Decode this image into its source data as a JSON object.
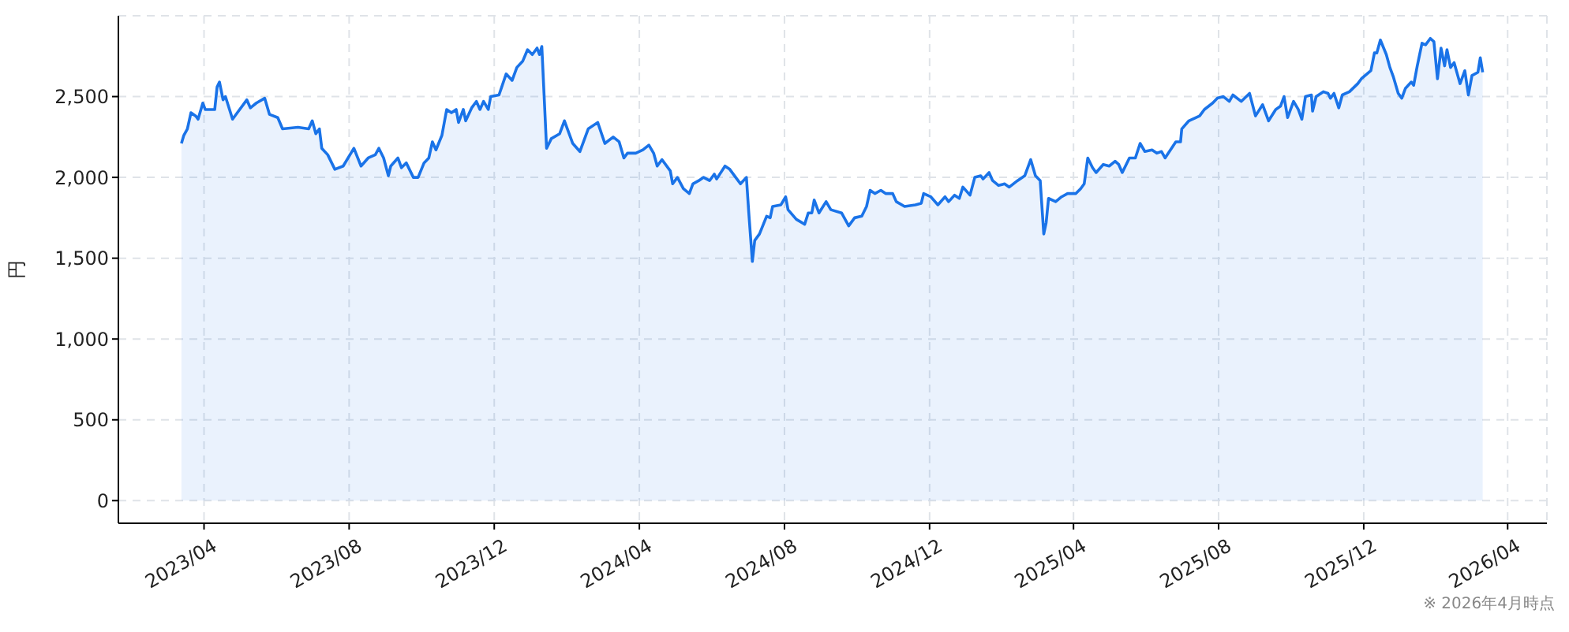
{
  "chart_data": {
    "type": "area",
    "ylabel": "円",
    "annotations": [
      "※ 2026年4月時点"
    ],
    "color": "#1a73e8",
    "grid": true,
    "xlim": [
      "2023-01-19",
      "2026-05-04"
    ],
    "xticks": [
      {
        "value": "2023-04",
        "label": "2023/04"
      },
      {
        "value": "2023-08",
        "label": "2023/08"
      },
      {
        "value": "2023-12",
        "label": "2023/12"
      },
      {
        "value": "2024-04",
        "label": "2024/04"
      },
      {
        "value": "2024-08",
        "label": "2024/08"
      },
      {
        "value": "2024-12",
        "label": "2024/12"
      },
      {
        "value": "2025-04",
        "label": "2025/04"
      },
      {
        "value": "2025-08",
        "label": "2025/08"
      },
      {
        "value": "2025-12",
        "label": "2025/12"
      },
      {
        "value": "2026-04",
        "label": "2026/04"
      }
    ],
    "ylim": [
      -140,
      3000
    ],
    "yticks": [
      0,
      500,
      {
        "value": 1000,
        "label": "1,000"
      },
      {
        "value": 1500,
        "label": "1,500"
      },
      {
        "value": 2000,
        "label": "2,000"
      },
      {
        "value": 2500,
        "label": "2,500"
      }
    ],
    "x": [
      "2023-03-13",
      "2023-03-15",
      "2023-03-18",
      "2023-03-21",
      "2023-03-25",
      "2023-03-27",
      "2023-03-31",
      "2023-04-02",
      "2023-04-10",
      "2023-04-12",
      "2023-04-14",
      "2023-04-17",
      "2023-04-19",
      "2023-04-25",
      "2023-04-29",
      "2023-05-07",
      "2023-05-10",
      "2023-05-15",
      "2023-05-22",
      "2023-05-26",
      "2023-06-02",
      "2023-06-06",
      "2023-06-19",
      "2023-06-28",
      "2023-07-01",
      "2023-07-04",
      "2023-07-07",
      "2023-07-09",
      "2023-07-14",
      "2023-07-20",
      "2023-07-27",
      "2023-08-05",
      "2023-08-11",
      "2023-08-17",
      "2023-08-23",
      "2023-08-26",
      "2023-08-30",
      "2023-09-03",
      "2023-09-05",
      "2023-09-11",
      "2023-09-14",
      "2023-09-18",
      "2023-09-24",
      "2023-09-28",
      "2023-10-03",
      "2023-10-07",
      "2023-10-10",
      "2023-10-13",
      "2023-10-18",
      "2023-10-22",
      "2023-10-26",
      "2023-10-30",
      "2023-11-01",
      "2023-11-05",
      "2023-11-07",
      "2023-11-12",
      "2023-11-16",
      "2023-11-19",
      "2023-11-22",
      "2023-11-26",
      "2023-11-28",
      "2023-12-05",
      "2023-12-11",
      "2023-12-16",
      "2023-12-20",
      "2023-12-25",
      "2023-12-29",
      "2024-01-02",
      "2024-01-06",
      "2024-01-08",
      "2024-01-10",
      "2024-01-14",
      "2024-01-18",
      "2024-01-25",
      "2024-01-29",
      "2024-02-05",
      "2024-02-11",
      "2024-02-18",
      "2024-02-26",
      "2024-03-03",
      "2024-03-10",
      "2024-03-15",
      "2024-03-19",
      "2024-03-22",
      "2024-03-29",
      "2024-04-04",
      "2024-04-09",
      "2024-04-13",
      "2024-04-16",
      "2024-04-20",
      "2024-04-27",
      "2024-04-29",
      "2024-05-03",
      "2024-05-08",
      "2024-05-13",
      "2024-05-16",
      "2024-05-21",
      "2024-05-25",
      "2024-05-30",
      "2024-06-03",
      "2024-06-05",
      "2024-06-12",
      "2024-06-16",
      "2024-06-22",
      "2024-06-25",
      "2024-06-30",
      "2024-07-02",
      "2024-07-05",
      "2024-07-07",
      "2024-07-11",
      "2024-07-17",
      "2024-07-20",
      "2024-07-22",
      "2024-07-29",
      "2024-08-02",
      "2024-08-04",
      "2024-08-11",
      "2024-08-18",
      "2024-08-21",
      "2024-08-24",
      "2024-08-26",
      "2024-08-30",
      "2024-09-05",
      "2024-09-09",
      "2024-09-18",
      "2024-09-24",
      "2024-09-29",
      "2024-10-05",
      "2024-10-09",
      "2024-10-12",
      "2024-10-16",
      "2024-10-21",
      "2024-10-25",
      "2024-10-31",
      "2024-11-03",
      "2024-11-10",
      "2024-11-19",
      "2024-11-24",
      "2024-11-26",
      "2024-12-02",
      "2024-12-08",
      "2024-12-14",
      "2024-12-17",
      "2024-12-22",
      "2024-12-26",
      "2024-12-29",
      "2025-01-04",
      "2025-01-08",
      "2025-01-13",
      "2025-01-15",
      "2025-01-20",
      "2025-01-23",
      "2025-01-28",
      "2025-02-02",
      "2025-02-06",
      "2025-02-13",
      "2025-02-19",
      "2025-02-24",
      "2025-02-28",
      "2025-03-04",
      "2025-03-07",
      "2025-03-09",
      "2025-03-11",
      "2025-03-17",
      "2025-03-22",
      "2025-03-27",
      "2025-04-03",
      "2025-04-07",
      "2025-04-10",
      "2025-04-13",
      "2025-04-17",
      "2025-04-20",
      "2025-04-26",
      "2025-05-01",
      "2025-05-06",
      "2025-05-09",
      "2025-05-12",
      "2025-05-18",
      "2025-05-23",
      "2025-05-27",
      "2025-05-31",
      "2025-06-06",
      "2025-06-10",
      "2025-06-14",
      "2025-06-17",
      "2025-06-26",
      "2025-06-30",
      "2025-07-01",
      "2025-07-07",
      "2025-07-16",
      "2025-07-20",
      "2025-07-27",
      "2025-07-31",
      "2025-08-05",
      "2025-08-10",
      "2025-08-13",
      "2025-08-20",
      "2025-08-27",
      "2025-09-01",
      "2025-09-07",
      "2025-09-12",
      "2025-09-18",
      "2025-09-22",
      "2025-09-25",
      "2025-09-28",
      "2025-10-03",
      "2025-10-07",
      "2025-10-10",
      "2025-10-13",
      "2025-10-18",
      "2025-10-19",
      "2025-10-22",
      "2025-10-28",
      "2025-11-01",
      "2025-11-03",
      "2025-11-06",
      "2025-11-10",
      "2025-11-13",
      "2025-11-19",
      "2025-11-26",
      "2025-11-29",
      "2025-12-07",
      "2025-12-10",
      "2025-12-12",
      "2025-12-15",
      "2025-12-20",
      "2025-12-23",
      "2025-12-26",
      "2025-12-30",
      "2026-01-02",
      "2026-01-05",
      "2026-01-10",
      "2026-01-12",
      "2026-01-15",
      "2026-01-19",
      "2026-01-22",
      "2026-01-26",
      "2026-01-29",
      "2026-02-01",
      "2026-02-04",
      "2026-02-07",
      "2026-02-09",
      "2026-02-12",
      "2026-02-15",
      "2026-02-20",
      "2026-02-24",
      "2026-02-27",
      "2026-03-02",
      "2026-03-07",
      "2026-03-09",
      "2026-03-11"
    ],
    "values": [
      2210,
      2260,
      2300,
      2400,
      2380,
      2360,
      2460,
      2420,
      2420,
      2560,
      2590,
      2480,
      2500,
      2360,
      2400,
      2480,
      2430,
      2460,
      2490,
      2390,
      2370,
      2300,
      2310,
      2300,
      2350,
      2270,
      2300,
      2180,
      2140,
      2050,
      2070,
      2180,
      2070,
      2120,
      2140,
      2180,
      2120,
      2010,
      2070,
      2120,
      2060,
      2090,
      2000,
      2000,
      2090,
      2120,
      2220,
      2170,
      2260,
      2420,
      2400,
      2420,
      2340,
      2420,
      2350,
      2430,
      2470,
      2420,
      2470,
      2420,
      2500,
      2510,
      2640,
      2600,
      2680,
      2720,
      2790,
      2760,
      2800,
      2760,
      2810,
      2180,
      2240,
      2270,
      2350,
      2210,
      2160,
      2300,
      2340,
      2210,
      2250,
      2220,
      2120,
      2150,
      2150,
      2170,
      2200,
      2150,
      2070,
      2110,
      2040,
      1960,
      2000,
      1930,
      1900,
      1960,
      1980,
      2000,
      1980,
      2020,
      1990,
      2070,
      2050,
      1990,
      1960,
      2000,
      1780,
      1480,
      1610,
      1650,
      1760,
      1750,
      1820,
      1830,
      1880,
      1800,
      1740,
      1710,
      1780,
      1780,
      1860,
      1780,
      1850,
      1800,
      1780,
      1700,
      1750,
      1760,
      1820,
      1920,
      1900,
      1920,
      1900,
      1900,
      1850,
      1820,
      1830,
      1840,
      1900,
      1880,
      1830,
      1880,
      1850,
      1890,
      1870,
      1940,
      1890,
      2000,
      2010,
      1990,
      2030,
      1980,
      1950,
      1960,
      1940,
      1980,
      2010,
      2110,
      2010,
      1980,
      1650,
      1720,
      1870,
      1850,
      1880,
      1900,
      1900,
      1930,
      1960,
      2120,
      2060,
      2030,
      2080,
      2070,
      2100,
      2080,
      2030,
      2120,
      2120,
      2210,
      2160,
      2170,
      2150,
      2160,
      2120,
      2220,
      2220,
      2300,
      2350,
      2380,
      2420,
      2460,
      2490,
      2500,
      2470,
      2510,
      2470,
      2520,
      2380,
      2450,
      2350,
      2420,
      2440,
      2500,
      2370,
      2470,
      2420,
      2360,
      2500,
      2510,
      2410,
      2500,
      2530,
      2520,
      2490,
      2520,
      2430,
      2510,
      2530,
      2580,
      2610,
      2660,
      2770,
      2770,
      2850,
      2760,
      2680,
      2620,
      2520,
      2490,
      2550,
      2590,
      2570,
      2690,
      2830,
      2820,
      2860,
      2840,
      2610,
      2800,
      2690,
      2790,
      2680,
      2710,
      2580,
      2660,
      2510,
      2630,
      2650,
      2740,
      2650
    ]
  }
}
